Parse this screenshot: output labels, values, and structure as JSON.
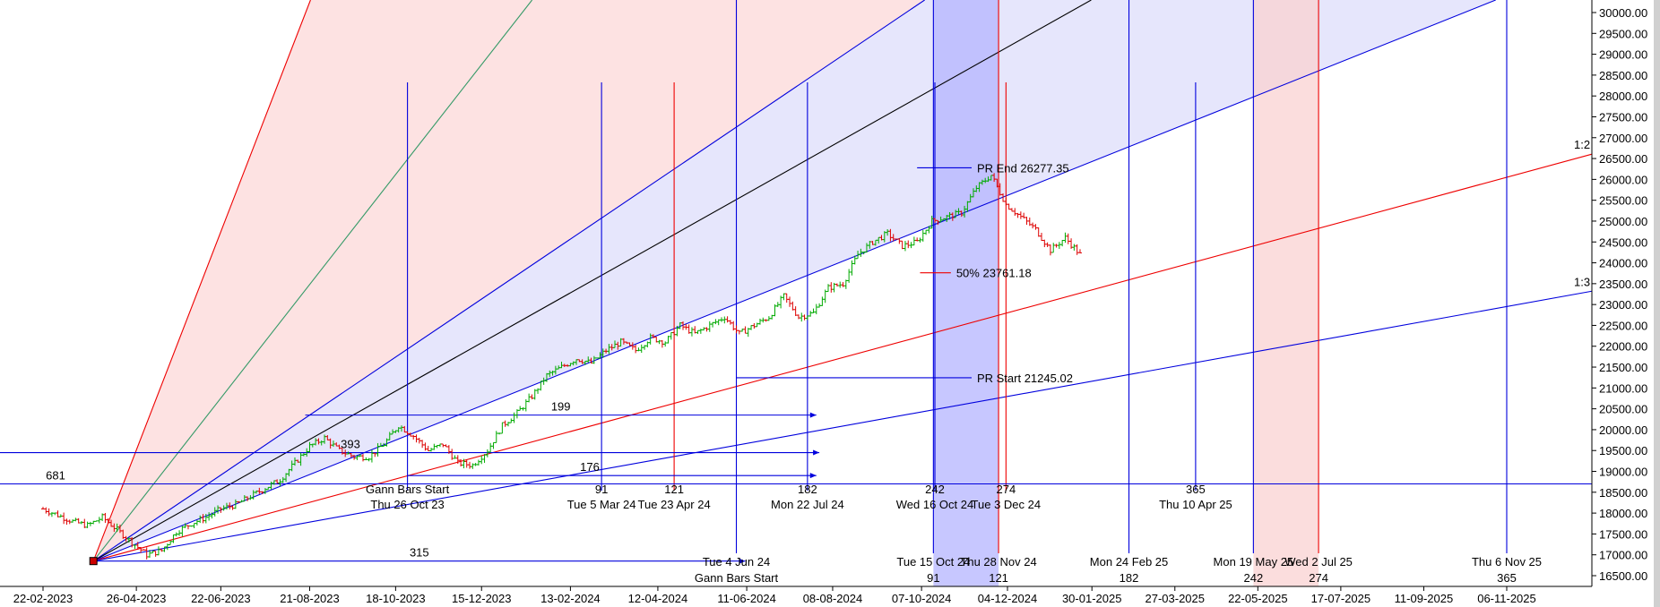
{
  "chart_data": {
    "type": "line",
    "title": "",
    "xlabel": "",
    "ylabel": "",
    "x_tick_labels": [
      "22-02-2023",
      "26-04-2023",
      "22-06-2023",
      "21-08-2023",
      "18-10-2023",
      "15-12-2023",
      "13-02-2024",
      "12-04-2024",
      "11-06-2024",
      "08-08-2024",
      "07-10-2024",
      "04-12-2024",
      "30-01-2025",
      "27-03-2025",
      "22-05-2025",
      "17-07-2025",
      "11-09-2025",
      "06-11-2025"
    ],
    "ylim": [
      16300,
      30250
    ],
    "y_ticks": [
      16500,
      17000,
      17500,
      18000,
      18500,
      19000,
      19500,
      20000,
      20500,
      21000,
      21500,
      22000,
      22500,
      23000,
      23500,
      24000,
      24500,
      25000,
      25500,
      26000,
      26500,
      27000,
      27500,
      28000,
      28500,
      29000,
      29500,
      30000
    ],
    "price_series": {
      "name": "",
      "days": [
        0,
        10,
        20,
        30,
        40,
        50,
        60,
        70,
        80,
        90,
        100,
        110,
        120,
        130,
        140,
        150,
        160,
        170,
        180,
        190,
        200,
        210,
        220,
        230,
        240,
        250,
        260,
        270,
        280,
        290,
        300,
        310,
        320,
        330,
        340,
        350,
        360,
        370,
        380,
        390,
        400,
        410,
        420,
        430,
        440,
        450,
        460,
        470,
        480,
        490,
        500,
        510,
        520,
        530,
        540,
        550,
        560,
        570,
        580,
        590,
        600,
        610,
        620,
        630,
        640,
        650,
        660,
        670,
        680,
        690,
        700
      ],
      "close": [
        18100,
        17950,
        17800,
        17700,
        17900,
        17600,
        17300,
        17000,
        17100,
        17550,
        17750,
        17900,
        18100,
        18200,
        18400,
        18600,
        18800,
        19200,
        19600,
        19800,
        19500,
        19350,
        19350,
        19650,
        20100,
        19850,
        19500,
        19650,
        19200,
        19150,
        19500,
        20100,
        20400,
        20800,
        21300,
        21500,
        21700,
        21600,
        21900,
        22100,
        21900,
        22200,
        22100,
        22500,
        22300,
        22500,
        22700,
        22300,
        22500,
        22700,
        23200,
        22700,
        22800,
        23400,
        23500,
        24200,
        24500,
        24700,
        24400,
        24500,
        25000,
        25100,
        25200,
        25800,
        26100,
        25400,
        25100,
        24800,
        24300,
        24600,
        24200
      ],
      "note": "x as calendar days after 23-02-2023"
    },
    "fan_origin": {
      "date": "28-03-2023",
      "value": 16850
    },
    "fan_lines": [
      {
        "label": "",
        "through": {
          "date": "21-08-2023",
          "value": 30250
        }
      },
      {
        "label": "",
        "through": {
          "date": "17-01-2024",
          "value": 30250
        }
      },
      {
        "label": "",
        "through": {
          "date": "07-10-2024",
          "value": 30250
        }
      },
      {
        "label": "",
        "through": {
          "date": "27-01-2025",
          "value": 30250
        }
      },
      {
        "label": "",
        "through": {
          "date": "26-10-2025",
          "value": 30250
        }
      },
      {
        "label": "1:2",
        "through": {
          "date": "07-12-2025",
          "value": 26350
        }
      },
      {
        "label": "1:3",
        "through": {
          "date": "07-12-2025",
          "value": 23150
        }
      }
    ],
    "horizontal_lines": [
      {
        "label": "PR End 26277.35",
        "from": "04-10-2024",
        "to": "11-11-2024",
        "value": 26277.35
      },
      {
        "label": "50% 23761.18",
        "from": "06-10-2024",
        "to": "28-10-2024",
        "value": 23761.18
      },
      {
        "label": "PR Start 21245.02",
        "from": "04-06-2024",
        "to": "11-11-2024",
        "value": 21245.02
      }
    ],
    "range_arrows": [
      {
        "label": "199",
        "from": "18-08-2023",
        "to": "28-07-2024",
        "value": 20350
      },
      {
        "label": "393",
        "from": "28-02-2022",
        "to": "30-07-2024",
        "value": 19450
      },
      {
        "label": "176",
        "from": "26-10-2023",
        "to": "28-07-2024",
        "value": 18900
      },
      {
        "label": "681",
        "from": "28-02-2022",
        "to": "",
        "value": 18700
      },
      {
        "label": "315",
        "from": "28-03-2023",
        "to": "10-06-2024",
        "value": 16850
      }
    ],
    "time_cycle_lines": [
      {
        "date": "26-10-2023",
        "color": "#0000dd",
        "count_label": "",
        "date_label": "Thu 26 Oct 23",
        "marker_label": "Gann Bars Start"
      },
      {
        "date": "05-03-2024",
        "color": "#0000dd",
        "count_label": "91",
        "date_label": "Tue 5 Mar 24",
        "marker_label": ""
      },
      {
        "date": "23-04-2024",
        "color": "#ee0000",
        "count_label": "121",
        "date_label": "Tue 23 Apr 24",
        "marker_label": ""
      },
      {
        "date": "22-07-2024",
        "color": "#0000dd",
        "count_label": "182",
        "date_label": "Mon 22 Jul 24",
        "marker_label": ""
      },
      {
        "date": "16-10-2024",
        "color": "#0000dd",
        "count_label": "242",
        "date_label": "Wed 16 Oct 24",
        "marker_label": ""
      },
      {
        "date": "03-12-2024",
        "color": "#ee0000",
        "count_label": "274",
        "date_label": "Tue 3 Dec 24",
        "marker_label": ""
      },
      {
        "date": "10-04-2025",
        "color": "#0000dd",
        "count_label": "365",
        "date_label": "Thu 10 Apr 25",
        "marker_label": ""
      }
    ],
    "forecast_cycle_lines": [
      {
        "date": "04-06-2024",
        "color": "#0000dd",
        "date_label": "Tue 4 Jun 24",
        "count_label": "",
        "marker_label": "Gann Bars Start"
      },
      {
        "date": "15-10-2024",
        "color": "#0000dd",
        "date_label": "Tue 15 Oct 24",
        "count_label": "91",
        "marker_label": ""
      },
      {
        "date": "28-11-2024",
        "color": "#ee0000",
        "date_label": "Thu 28 Nov 24",
        "count_label": "121",
        "marker_label": ""
      },
      {
        "date": "24-02-2025",
        "color": "#0000dd",
        "date_label": "Mon 24 Feb 25",
        "count_label": "182",
        "marker_label": ""
      },
      {
        "date": "19-05-2025",
        "color": "#0000dd",
        "date_label": "Mon 19 May 25",
        "count_label": "242",
        "marker_label": ""
      },
      {
        "date": "02-07-2025",
        "color": "#ee0000",
        "date_label": "Wed 2 Jul 25",
        "count_label": "274",
        "marker_label": ""
      },
      {
        "date": "06-11-2025",
        "color": "#0000dd",
        "date_label": "Thu 6 Nov 25",
        "count_label": "365",
        "marker_label": ""
      }
    ],
    "shaded_time_zones": [
      {
        "from": "15-10-2024",
        "to": "28-11-2024",
        "color": "#b4b4ff"
      },
      {
        "from": "19-05-2025",
        "to": "02-07-2025",
        "color": "#fad2d2"
      }
    ],
    "colors": {
      "up_bar": "#00aa00",
      "down_bar": "#dd0000",
      "blue": "#0000dd",
      "red": "#ee0000",
      "green": "#339966",
      "fan_fill_red": "#fde2e2",
      "fan_fill_blue": "#e6e6fc"
    },
    "grid": false,
    "legend": "none"
  }
}
